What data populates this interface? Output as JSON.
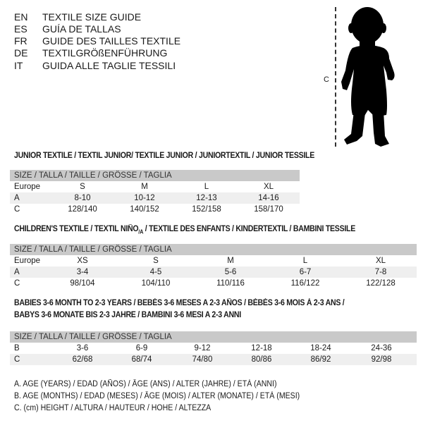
{
  "languages": [
    {
      "code": "EN",
      "text": "TEXTILE SIZE GUIDE"
    },
    {
      "code": "ES",
      "text": "GUÍA DE TALLAS"
    },
    {
      "code": "FR",
      "text": "GUIDE DES TAILLES TEXTILE"
    },
    {
      "code": "DE",
      "text": "TEXTILGRÖßENFÜHRUNG"
    },
    {
      "code": "IT",
      "text": "GUIDA ALLE TAGLIE TESSILI"
    }
  ],
  "figure": {
    "measure_label": "C",
    "icon": "child-silhouette"
  },
  "junior": {
    "title": "JUNIOR TEXTILE / TEXTIL JUNIOR/ TEXTILE JUNIOR / JUNIORTEXTIL / JUNIOR TESSILE",
    "header": "SIZE / TALLA / TAILLE / GRÖSSE / TAGLIA",
    "rows": [
      {
        "label": "Europe",
        "cells": [
          "S",
          "M",
          "L",
          "XL"
        ]
      },
      {
        "label": "A",
        "cells": [
          "8-10",
          "10-12",
          "12-13",
          "14-16"
        ]
      },
      {
        "label": "C",
        "cells": [
          "128/140",
          "140/152",
          "152/158",
          "158/170"
        ]
      }
    ]
  },
  "children": {
    "title_a": "CHILDREN'S TEXTILE / TEXTIL NIÑO",
    "title_sub": "/A",
    "title_b": " / TEXTILE DES ENFANTS / KINDERTEXTIL / BAMBINI TESSILE",
    "header": "SIZE / TALLA / TAILLE / GRÖSSE / TAGLIA",
    "rows": [
      {
        "label": "Europe",
        "cells": [
          "XS",
          "S",
          "M",
          "L",
          "XL"
        ]
      },
      {
        "label": "A",
        "cells": [
          "3-4",
          "4-5",
          "5-6",
          "6-7",
          "7-8"
        ]
      },
      {
        "label": "C",
        "cells": [
          "98/104",
          "104/110",
          "110/116",
          "116/122",
          "122/128"
        ]
      }
    ]
  },
  "babies": {
    "title_line1": "BABIES 3-6 MONTH TO 2-3 YEARS / BEBÉS 3-6 MESES A 2-3 AÑOS / BÉBÉS 3-6 MOIS À 2-3 ANS /",
    "title_line2": "BABYS 3-6 MONATE BIS 2-3 JAHRE / BAMBINI 3-6 MESI A 2-3 ANNI",
    "header": "SIZE / TALLA / TAILLE / GRÖSSE / TAGLIA",
    "rows": [
      {
        "label": "B",
        "cells": [
          "3-6",
          "6-9",
          "9-12",
          "12-18",
          "18-24",
          "24-36"
        ]
      },
      {
        "label": "C",
        "cells": [
          "62/68",
          "68/74",
          "74/80",
          "80/86",
          "86/92",
          "92/98"
        ]
      }
    ]
  },
  "notes": [
    "A. AGE (YEARS) / EDAD (AÑOS) / ÂGE (ANS) / ALTER (JAHRE) / ETÀ (ANNI)",
    "B. AGE (MONTHS) / EDAD (MESES) / ÂGE (MOIS) / ALTER (MONATE) / ETÀ (MESI)",
    "C. (cm) HEIGHT / ALTURA / HAUTEUR / HÖHE / ALTEZZA"
  ]
}
